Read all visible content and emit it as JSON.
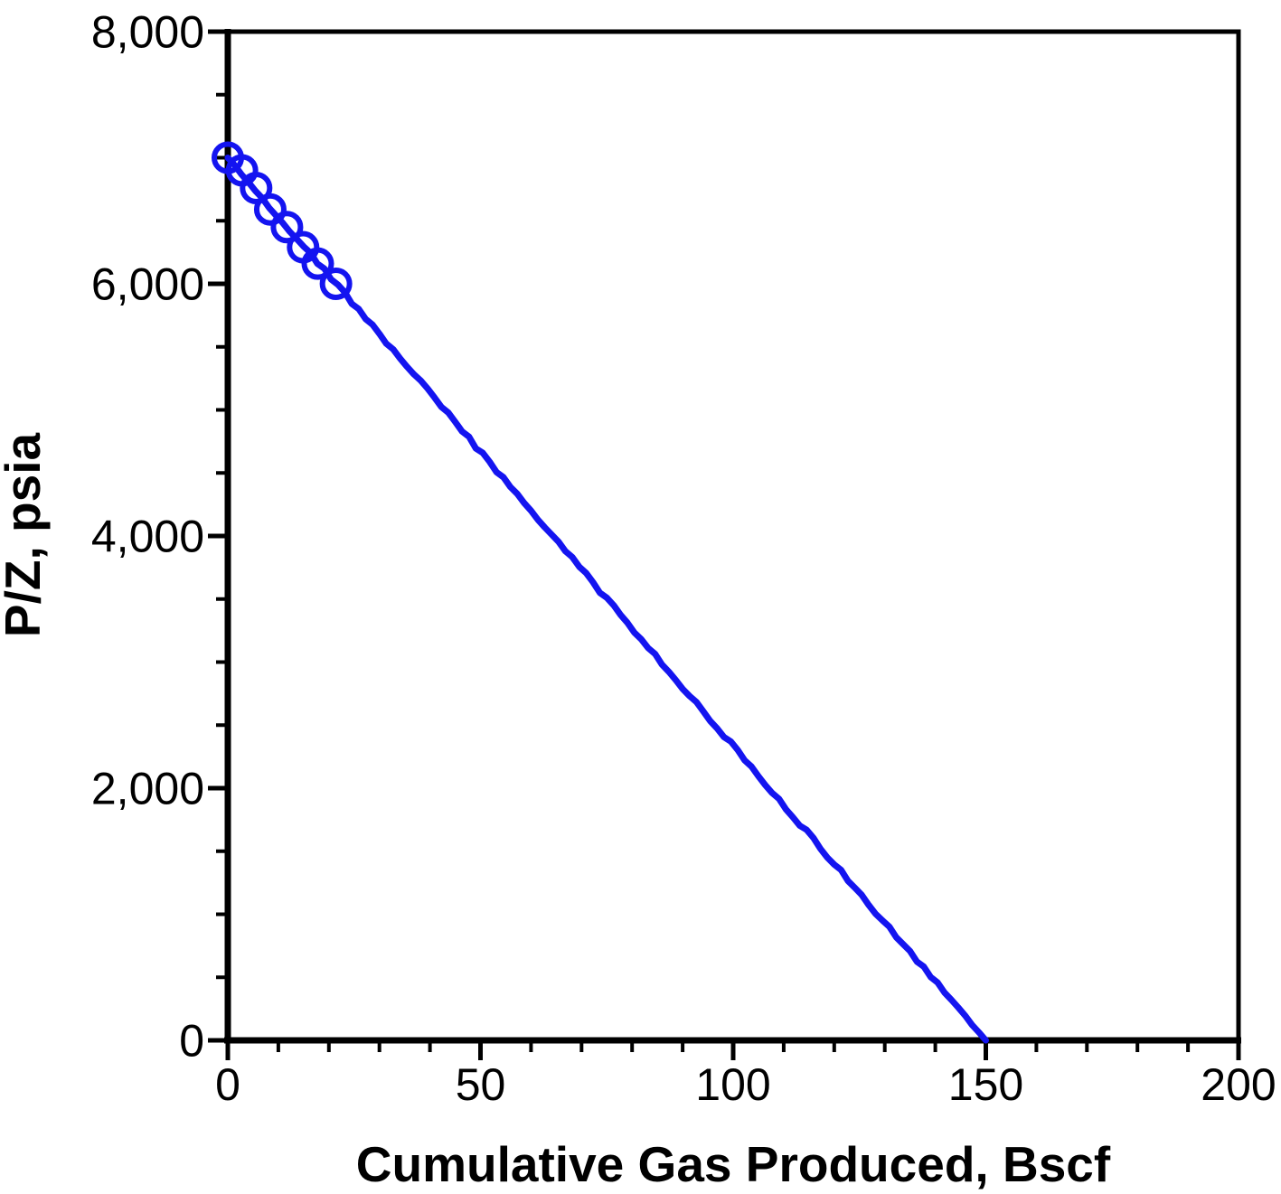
{
  "figure": {
    "background_color": "#ffffff",
    "axis_color": "#000000",
    "series_color": "#1414f0"
  },
  "chart_data": {
    "type": "scatter",
    "title": "",
    "xlabel": "Cumulative Gas Produced, Bscf",
    "ylabel": "P/Z, psia",
    "xlim": [
      0,
      200
    ],
    "ylim": [
      0,
      8000
    ],
    "x_major_ticks": [
      0,
      50,
      100,
      150,
      200
    ],
    "x_major_tick_labels": [
      "0",
      "50",
      "100",
      "150",
      "200"
    ],
    "x_minor_tick_step": 10,
    "y_major_ticks": [
      0,
      2000,
      4000,
      6000,
      8000
    ],
    "y_major_tick_labels": [
      "0",
      "2,000",
      "4,000",
      "6,000",
      "8,000"
    ],
    "y_minor_tick_step": 500,
    "grid": false,
    "legend": "none",
    "series": [
      {
        "name": "extrapolation-line",
        "type": "line",
        "color": "#1414f0",
        "points": [
          [
            0,
            7000
          ],
          [
            150,
            0
          ]
        ]
      },
      {
        "name": "measured-data",
        "type": "scatter",
        "marker": "open-circle",
        "color": "#1414f0",
        "points": [
          [
            0,
            7000
          ],
          [
            2.8,
            6900
          ],
          [
            5.6,
            6760
          ],
          [
            8.4,
            6590
          ],
          [
            11.7,
            6450
          ],
          [
            14.9,
            6290
          ],
          [
            17.8,
            6160
          ],
          [
            21.4,
            6000
          ]
        ]
      }
    ]
  }
}
